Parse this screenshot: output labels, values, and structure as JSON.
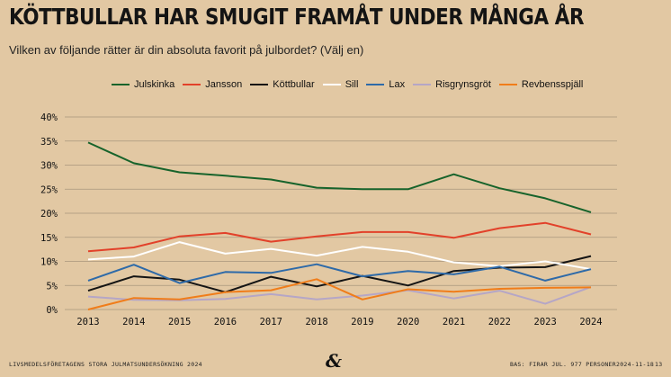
{
  "title": "KÖTTBULLAR HAR SMUGIT FRAMÅT UNDER MÅNGA ÅR",
  "subtitle": "Vilken av följande rätter är din absoluta favorit på julbordet? (Välj en)",
  "footer": {
    "left": "LIVSMEDELSFÖRETAGENS STORA JULMATSUNDERSÖKNING 2024",
    "base": "BAS: FIRAR JUL. 977 PERSONER",
    "date": "2024-11-18",
    "page": "13",
    "logo": "&"
  },
  "colors": {
    "background": "#e2c8a3",
    "grid": "#a9967d"
  },
  "chart_data": {
    "type": "line",
    "title": "",
    "xlabel": "",
    "ylabel": "",
    "x": [
      2013,
      2014,
      2015,
      2016,
      2017,
      2018,
      2019,
      2020,
      2021,
      2022,
      2023,
      2024
    ],
    "ylim": [
      0,
      40
    ],
    "yticks": [
      "0%",
      "5%",
      "10%",
      "15%",
      "20%",
      "25%",
      "30%",
      "35%",
      "40%"
    ],
    "grid": true,
    "legend_position": "top",
    "series": [
      {
        "name": "Julskinka",
        "color": "#17632b",
        "values": [
          34.7,
          30.4,
          28.5,
          27.8,
          27.0,
          25.3,
          25.0,
          25.0,
          28.1,
          25.2,
          23.1,
          20.2
        ]
      },
      {
        "name": "Jansson",
        "color": "#e2412a",
        "values": [
          12.1,
          12.9,
          15.2,
          15.9,
          14.1,
          15.2,
          16.1,
          16.1,
          14.9,
          16.9,
          18.0,
          15.6
        ]
      },
      {
        "name": "Köttbullar",
        "color": "#141414",
        "values": [
          3.9,
          6.9,
          6.2,
          3.6,
          6.8,
          4.8,
          7.0,
          5.0,
          8.0,
          8.7,
          8.8,
          11.1
        ]
      },
      {
        "name": "Sill",
        "color": "#ffffff",
        "values": [
          10.4,
          11.0,
          14.0,
          11.6,
          12.6,
          11.2,
          13.0,
          12.0,
          9.8,
          9.0,
          10.0,
          8.4
        ]
      },
      {
        "name": "Lax",
        "color": "#2e6aa8",
        "values": [
          6.0,
          9.3,
          5.5,
          7.8,
          7.6,
          9.4,
          6.9,
          8.0,
          7.3,
          8.9,
          6.0,
          8.4
        ]
      },
      {
        "name": "Risgrynsgröt",
        "color": "#b5a6c6",
        "values": [
          2.7,
          2.0,
          1.9,
          2.2,
          3.2,
          2.1,
          2.9,
          4.0,
          2.3,
          3.9,
          1.2,
          4.7
        ]
      },
      {
        "name": "Revbensspjäll",
        "color": "#f07d1a",
        "values": [
          0.0,
          2.4,
          2.1,
          3.6,
          4.0,
          6.3,
          2.1,
          4.2,
          3.7,
          4.3,
          4.5,
          4.6
        ]
      }
    ]
  }
}
